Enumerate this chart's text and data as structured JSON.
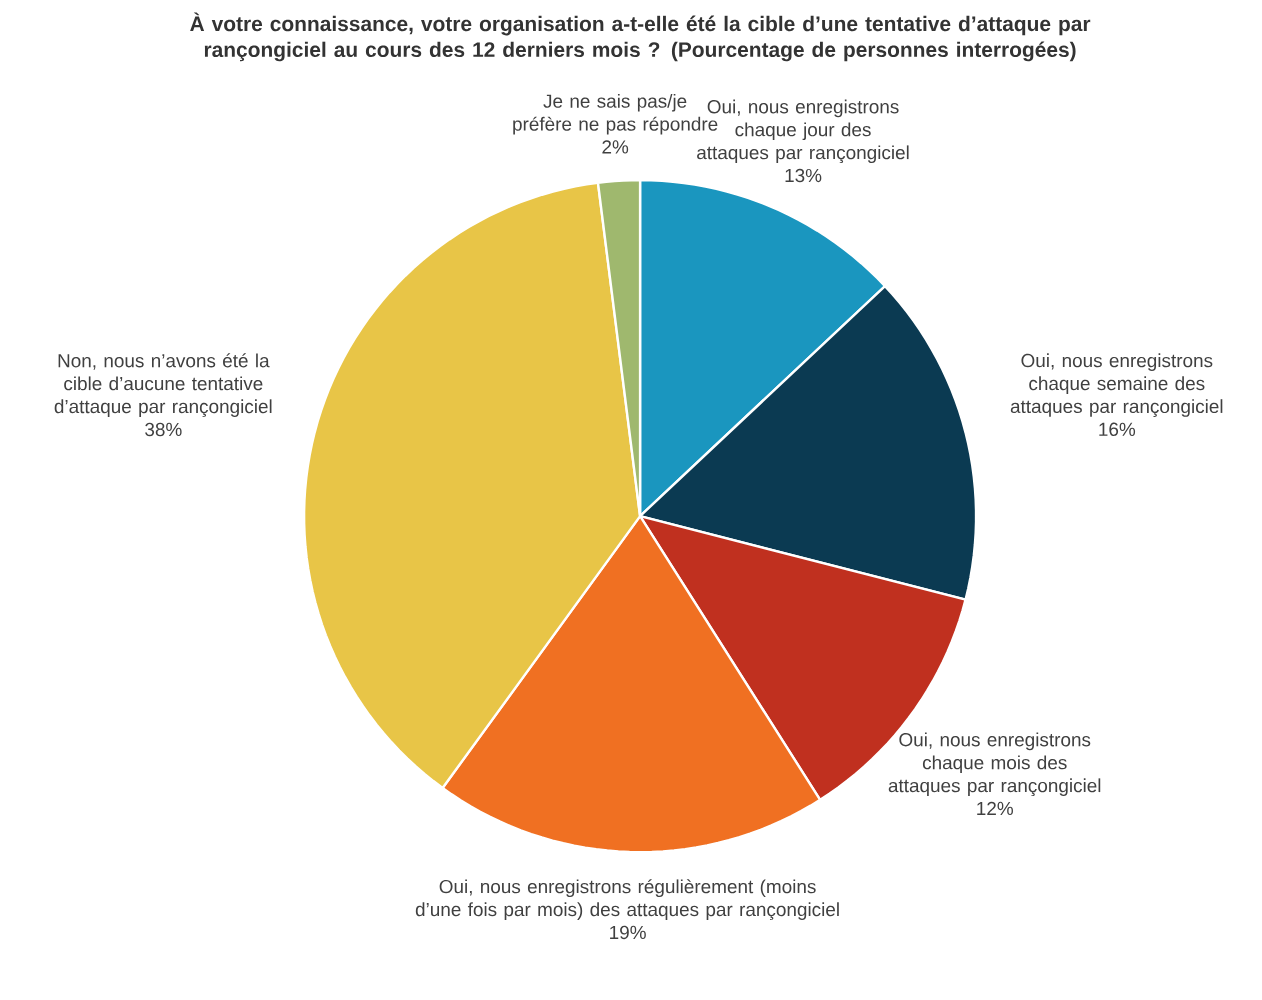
{
  "chart_data": {
    "type": "pie",
    "title": "À votre connaissance, votre organisation a-t-elle été la cible d’une tentative d’attaque par rançongiciel au cours des 12 derniers mois ? (Pourcentage de personnes interrogées)",
    "categories": [
      "Oui, nous enregistrons chaque jour des attaques par rançongiciel",
      "Oui, nous enregistrons chaque semaine des attaques par rançongiciel",
      "Oui, nous enregistrons chaque mois des attaques par rançongiciel",
      "Oui, nous enregistrons régulièrement (moins d’une fois par mois) des attaques par rançongiciel",
      "Non, nous n’avons été la cible d’aucune tentative d’attaque par rançongiciel",
      "Je ne sais pas/je préfère ne pas répondre"
    ],
    "values": [
      13,
      16,
      12,
      19,
      38,
      2
    ],
    "value_labels": [
      "13%",
      "16%",
      "12%",
      "19%",
      "38%",
      "2%"
    ],
    "colors": [
      "#1a96bf",
      "#0b3a52",
      "#c0301f",
      "#f07022",
      "#e8c547",
      "#9fb86e"
    ]
  }
}
